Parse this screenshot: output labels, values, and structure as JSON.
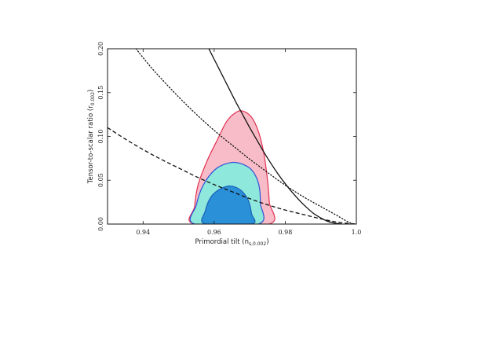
{
  "chart_data": {
    "type": "contour",
    "title": "",
    "xlabel": "Primordial tilt (n",
    "xlabel_sub": "s,0.002",
    "xlabel_close": ")",
    "ylabel": "Tensor-to-scalar ratio (r",
    "ylabel_sub": "0.002",
    "ylabel_close": ")",
    "xlim": [
      0.93,
      1.0
    ],
    "ylim": [
      0.0,
      0.2
    ],
    "x_ticks": [
      0.94,
      0.96,
      0.98,
      1.0
    ],
    "x_tick_labels": [
      "0.94",
      "0.96",
      "0.98",
      "1.0"
    ],
    "y_ticks": [
      0.0,
      0.05,
      0.1,
      0.15,
      0.2
    ],
    "y_tick_labels": [
      "0.00",
      "0.05",
      "0.10",
      "0.15",
      "0.20"
    ],
    "grid": false,
    "legend": "none",
    "regions": [
      {
        "color": "#f8bcc8",
        "edge": "#e03050",
        "points": [
          [
            0.9545,
            0.0
          ],
          [
            0.9545,
            0.02
          ],
          [
            0.9555,
            0.045
          ],
          [
            0.958,
            0.072
          ],
          [
            0.961,
            0.097
          ],
          [
            0.9635,
            0.117
          ],
          [
            0.966,
            0.127
          ],
          [
            0.968,
            0.129
          ],
          [
            0.9705,
            0.122
          ],
          [
            0.9725,
            0.105
          ],
          [
            0.974,
            0.08
          ],
          [
            0.975,
            0.05
          ],
          [
            0.9755,
            0.025
          ],
          [
            0.9755,
            0.0
          ]
        ]
      },
      {
        "color": "#8ee8dc",
        "edge": "#3050d8",
        "points": [
          [
            0.9545,
            0.0
          ],
          [
            0.955,
            0.022
          ],
          [
            0.957,
            0.045
          ],
          [
            0.9605,
            0.063
          ],
          [
            0.9645,
            0.07
          ],
          [
            0.9675,
            0.069
          ],
          [
            0.9705,
            0.062
          ],
          [
            0.9725,
            0.046
          ],
          [
            0.973,
            0.024
          ],
          [
            0.9725,
            0.0
          ]
        ]
      },
      {
        "color": "#2a90d8",
        "edge": "#1a60b8",
        "points": [
          [
            0.9575,
            0.0
          ],
          [
            0.9575,
            0.015
          ],
          [
            0.9595,
            0.033
          ],
          [
            0.9635,
            0.043
          ],
          [
            0.967,
            0.04
          ],
          [
            0.9695,
            0.028
          ],
          [
            0.9705,
            0.012
          ],
          [
            0.9705,
            0.0
          ]
        ]
      }
    ],
    "series": [
      {
        "style": "solid",
        "points": [
          [
            0.9585,
            0.2
          ],
          [
            0.96,
            0.188
          ],
          [
            0.962,
            0.172
          ],
          [
            0.964,
            0.156
          ],
          [
            0.966,
            0.14
          ],
          [
            0.968,
            0.125
          ],
          [
            0.97,
            0.11
          ],
          [
            0.972,
            0.096
          ],
          [
            0.974,
            0.082
          ],
          [
            0.976,
            0.069
          ],
          [
            0.978,
            0.057
          ],
          [
            0.98,
            0.046
          ],
          [
            0.982,
            0.036
          ],
          [
            0.984,
            0.027
          ],
          [
            0.986,
            0.019
          ],
          [
            0.988,
            0.012
          ],
          [
            0.99,
            0.007
          ],
          [
            0.992,
            0.003
          ],
          [
            0.994,
            0.001
          ],
          [
            0.996,
            0.0
          ]
        ]
      },
      {
        "style": "dotted",
        "points": [
          [
            0.938,
            0.2
          ],
          [
            0.942,
            0.18
          ],
          [
            0.946,
            0.162
          ],
          [
            0.95,
            0.145
          ],
          [
            0.954,
            0.129
          ],
          [
            0.958,
            0.114
          ],
          [
            0.962,
            0.1
          ],
          [
            0.966,
            0.087
          ],
          [
            0.97,
            0.074
          ],
          [
            0.974,
            0.062
          ],
          [
            0.978,
            0.05
          ],
          [
            0.982,
            0.039
          ],
          [
            0.986,
            0.029
          ],
          [
            0.99,
            0.02
          ],
          [
            0.994,
            0.011
          ],
          [
            0.997,
            0.004
          ],
          [
            0.999,
            0.0
          ]
        ]
      },
      {
        "style": "dashed",
        "points": [
          [
            0.93,
            0.11
          ],
          [
            0.935,
            0.097
          ],
          [
            0.94,
            0.085
          ],
          [
            0.945,
            0.074
          ],
          [
            0.95,
            0.064
          ],
          [
            0.955,
            0.054
          ],
          [
            0.96,
            0.045
          ],
          [
            0.965,
            0.037
          ],
          [
            0.97,
            0.029
          ],
          [
            0.975,
            0.022
          ],
          [
            0.98,
            0.016
          ],
          [
            0.985,
            0.011
          ],
          [
            0.99,
            0.006
          ],
          [
            0.995,
            0.002
          ],
          [
            1.0,
            0.0
          ]
        ]
      }
    ]
  }
}
